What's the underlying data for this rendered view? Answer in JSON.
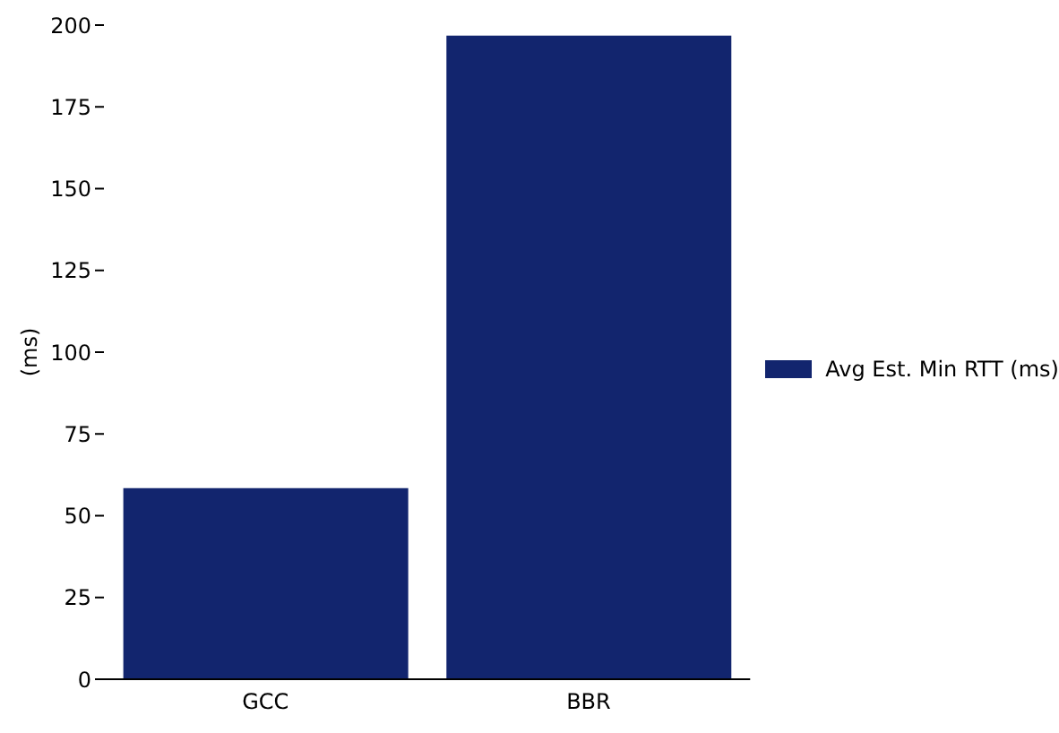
{
  "chart_data": {
    "type": "bar",
    "ylabel": "(ms)",
    "categories": [
      "GCC",
      "BBR"
    ],
    "series": [
      {
        "name": "Avg Est. Min RTT (ms)",
        "color": "#12256e",
        "values": [
          58.4,
          196.8
        ]
      }
    ],
    "ylim": [
      0,
      200
    ],
    "yticks": [
      0,
      25,
      50,
      75,
      100,
      125,
      150,
      175,
      200
    ],
    "grid": false,
    "legend": "right"
  }
}
